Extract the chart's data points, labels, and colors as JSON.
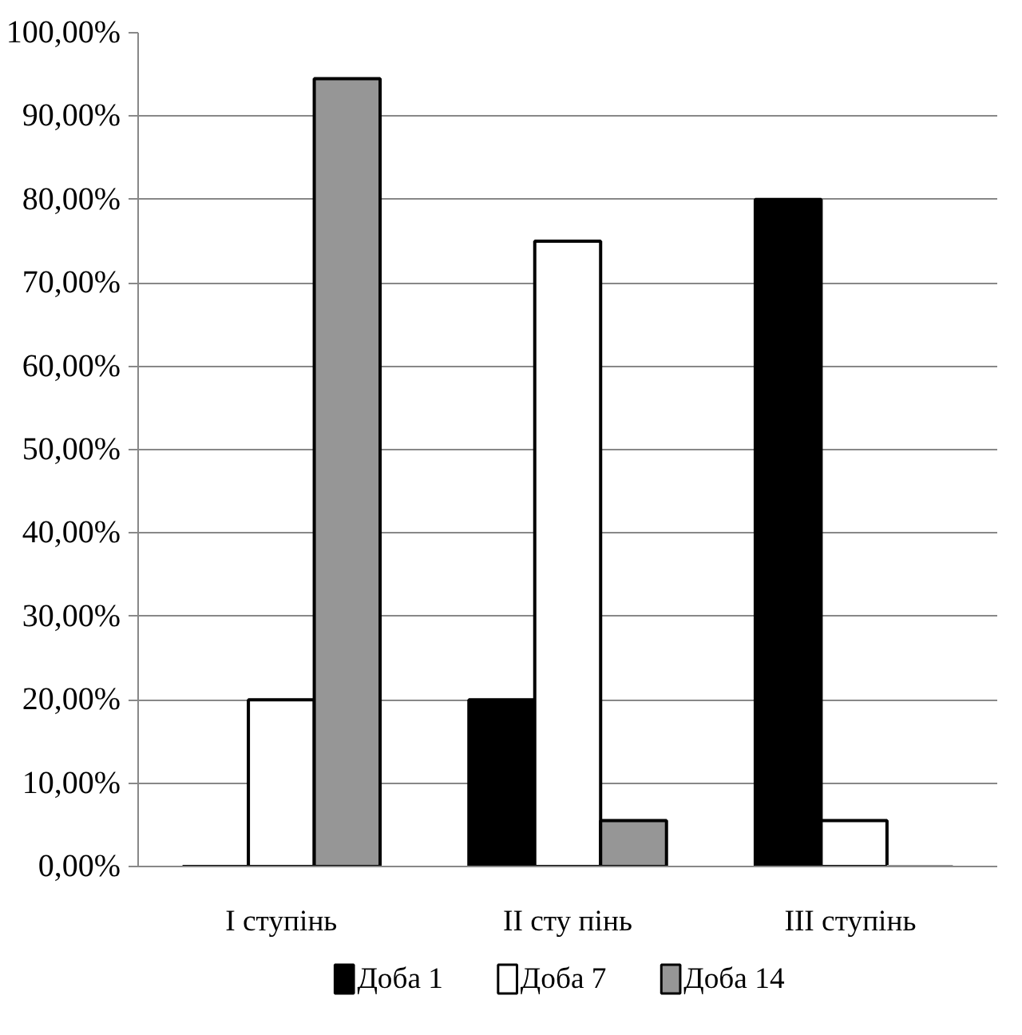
{
  "chart_data": {
    "type": "bar",
    "categories": [
      "I ступінь",
      "II сту пінь",
      "III  ступінь"
    ],
    "series": [
      {
        "name": "Доба 1",
        "color": "#000000",
        "values": [
          0,
          20,
          80
        ]
      },
      {
        "name": "Доба 7",
        "color": "#ffffff",
        "values": [
          20,
          75,
          5.5
        ]
      },
      {
        "name": "Доба 14",
        "color": "#969696",
        "values": [
          94.5,
          5.5,
          0
        ]
      }
    ],
    "ylim": [
      0,
      100
    ],
    "yticks": [
      {
        "value": 0,
        "label": "0,00%"
      },
      {
        "value": 10,
        "label": "10,00%"
      },
      {
        "value": 20,
        "label": "20,00%"
      },
      {
        "value": 30,
        "label": "30,00%"
      },
      {
        "value": 40,
        "label": "40,00%"
      },
      {
        "value": 50,
        "label": "50,00%"
      },
      {
        "value": 60,
        "label": "60,00%"
      },
      {
        "value": 70,
        "label": "70,00%"
      },
      {
        "value": 80,
        "label": "80,00%"
      },
      {
        "value": 90,
        "label": "90,00%"
      },
      {
        "value": 100,
        "label": "100,00%"
      }
    ],
    "grid": "y",
    "legend": "bottom"
  }
}
